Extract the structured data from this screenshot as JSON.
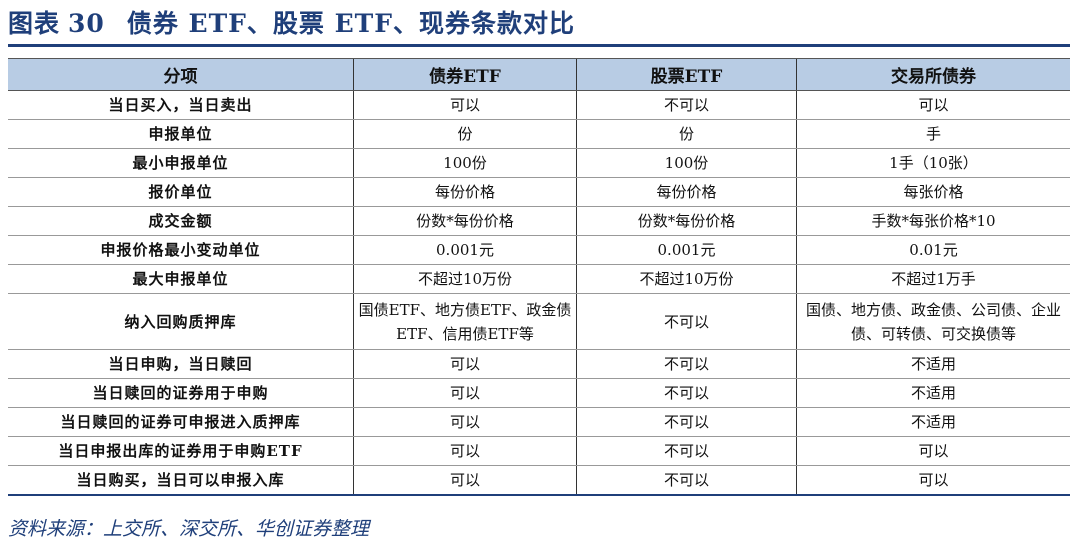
{
  "title": {
    "label": "图表",
    "number": "30",
    "text": "债券 ETF、股票 ETF、现券条款对比"
  },
  "table": {
    "headers": [
      "分项",
      "债券ETF",
      "股票ETF",
      "交易所债券"
    ],
    "rows": [
      [
        "当日买入，当日卖出",
        "可以",
        "不可以",
        "可以"
      ],
      [
        "申报单位",
        "份",
        "份",
        "手"
      ],
      [
        "最小申报单位",
        "100份",
        "100份",
        "1手（10张）"
      ],
      [
        "报价单位",
        "每份价格",
        "每份价格",
        "每张价格"
      ],
      [
        "成交金额",
        "份数*每份价格",
        "份数*每份价格",
        "手数*每张价格*10"
      ],
      [
        "申报价格最小变动单位",
        "0.001元",
        "0.001元",
        "0.01元"
      ],
      [
        "最大申报单位",
        "不超过10万份",
        "不超过10万份",
        "不超过1万手"
      ],
      [
        "纳入回购质押库",
        "国债ETF、地方债ETF、政金债ETF、信用债ETF等",
        "不可以",
        "国债、地方债、政金债、公司债、企业债、可转债、可交换债等"
      ],
      [
        "当日申购，当日赎回",
        "可以",
        "不可以",
        "不适用"
      ],
      [
        "当日赎回的证券用于申购",
        "可以",
        "不可以",
        "不适用"
      ],
      [
        "当日赎回的证券可申报进入质押库",
        "可以",
        "不可以",
        "不适用"
      ],
      [
        "当日申报出库的证券用于申购ETF",
        "可以",
        "不可以",
        "可以"
      ],
      [
        "当日购买，当日可以申报入库",
        "可以",
        "不可以",
        "可以"
      ]
    ]
  },
  "source": "资料来源：上交所、深交所、华创证券整理",
  "colors": {
    "accent": "#1f3f7a",
    "header_bg": "#b8cce4"
  }
}
